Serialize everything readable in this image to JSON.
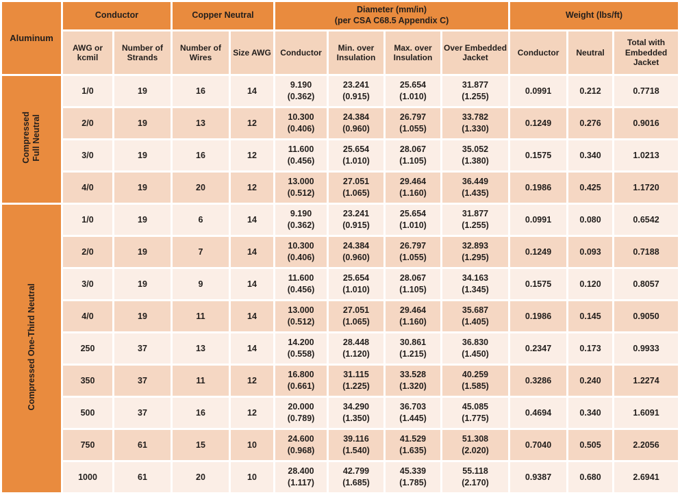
{
  "colors": {
    "accent": "#e98b3e",
    "row_light": "#fbeee6",
    "row_dark": "#f5d7c3",
    "subheader": "#f4d4bd",
    "text": "#221e1c",
    "background": "#ffffff"
  },
  "header": {
    "corner": "Aluminum",
    "groups": [
      {
        "label": "Conductor",
        "span": 2
      },
      {
        "label": "Copper Neutral",
        "span": 2
      },
      {
        "label": "Diameter (mm/in)",
        "label2": "(per CSA C68.5 Appendix C)",
        "span": 4
      },
      {
        "label": "Weight (lbs/ft)",
        "span": 3
      }
    ],
    "columns": [
      "AWG or kcmil",
      "Number of Strands",
      "Number of Wires",
      "Size AWG",
      "Conductor",
      "Min. over Insulation",
      "Max. over Insulation",
      "Over Embedded Jacket",
      "Conductor",
      "Neutral",
      "Total with Embedded Jacket"
    ]
  },
  "sections": [
    {
      "label": "Compressed Full Neutral",
      "label_lines": [
        "Compressed",
        "Full Neutral"
      ],
      "rows": [
        {
          "awg": "1/0",
          "strands": "19",
          "wires": "16",
          "size": "14",
          "dia_conductor": [
            "9.190",
            "(0.362)"
          ],
          "dia_min": [
            "23.241",
            "(0.915)"
          ],
          "dia_max": [
            "25.654",
            "(1.010)"
          ],
          "dia_jacket": [
            "31.877",
            "(1.255)"
          ],
          "wt_conductor": "0.0991",
          "wt_neutral": "0.212",
          "wt_total": "0.7718"
        },
        {
          "awg": "2/0",
          "strands": "19",
          "wires": "13",
          "size": "12",
          "dia_conductor": [
            "10.300",
            "(0.406)"
          ],
          "dia_min": [
            "24.384",
            "(0.960)"
          ],
          "dia_max": [
            "26.797",
            "(1.055)"
          ],
          "dia_jacket": [
            "33.782",
            "(1.330)"
          ],
          "wt_conductor": "0.1249",
          "wt_neutral": "0.276",
          "wt_total": "0.9016"
        },
        {
          "awg": "3/0",
          "strands": "19",
          "wires": "16",
          "size": "12",
          "dia_conductor": [
            "11.600",
            "(0.456)"
          ],
          "dia_min": [
            "25.654",
            "(1.010)"
          ],
          "dia_max": [
            "28.067",
            "(1.105)"
          ],
          "dia_jacket": [
            "35.052",
            "(1.380)"
          ],
          "wt_conductor": "0.1575",
          "wt_neutral": "0.340",
          "wt_total": "1.0213"
        },
        {
          "awg": "4/0",
          "strands": "19",
          "wires": "20",
          "size": "12",
          "dia_conductor": [
            "13.000",
            "(0.512)"
          ],
          "dia_min": [
            "27.051",
            "(1.065)"
          ],
          "dia_max": [
            "29.464",
            "(1.160)"
          ],
          "dia_jacket": [
            "36.449",
            "(1.435)"
          ],
          "wt_conductor": "0.1986",
          "wt_neutral": "0.425",
          "wt_total": "1.1720"
        }
      ]
    },
    {
      "label": "Compressed One-Third Neutral",
      "label_lines": [
        "Compressed One-Third Neutral"
      ],
      "rows": [
        {
          "awg": "1/0",
          "strands": "19",
          "wires": "6",
          "size": "14",
          "dia_conductor": [
            "9.190",
            "(0.362)"
          ],
          "dia_min": [
            "23.241",
            "(0.915)"
          ],
          "dia_max": [
            "25.654",
            "(1.010)"
          ],
          "dia_jacket": [
            "31.877",
            "(1.255)"
          ],
          "wt_conductor": "0.0991",
          "wt_neutral": "0.080",
          "wt_total": "0.6542"
        },
        {
          "awg": "2/0",
          "strands": "19",
          "wires": "7",
          "size": "14",
          "dia_conductor": [
            "10.300",
            "(0.406)"
          ],
          "dia_min": [
            "24.384",
            "(0.960)"
          ],
          "dia_max": [
            "26.797",
            "(1.055)"
          ],
          "dia_jacket": [
            "32.893",
            "(1.295)"
          ],
          "wt_conductor": "0.1249",
          "wt_neutral": "0.093",
          "wt_total": "0.7188"
        },
        {
          "awg": "3/0",
          "strands": "19",
          "wires": "9",
          "size": "14",
          "dia_conductor": [
            "11.600",
            "(0.456)"
          ],
          "dia_min": [
            "25.654",
            "(1.010)"
          ],
          "dia_max": [
            "28.067",
            "(1.105)"
          ],
          "dia_jacket": [
            "34.163",
            "(1.345)"
          ],
          "wt_conductor": "0.1575",
          "wt_neutral": "0.120",
          "wt_total": "0.8057"
        },
        {
          "awg": "4/0",
          "strands": "19",
          "wires": "11",
          "size": "14",
          "dia_conductor": [
            "13.000",
            "(0.512)"
          ],
          "dia_min": [
            "27.051",
            "(1.065)"
          ],
          "dia_max": [
            "29.464",
            "(1.160)"
          ],
          "dia_jacket": [
            "35.687",
            "(1.405)"
          ],
          "wt_conductor": "0.1986",
          "wt_neutral": "0.145",
          "wt_total": "0.9050"
        },
        {
          "awg": "250",
          "strands": "37",
          "wires": "13",
          "size": "14",
          "dia_conductor": [
            "14.200",
            "(0.558)"
          ],
          "dia_min": [
            "28.448",
            "(1.120)"
          ],
          "dia_max": [
            "30.861",
            "(1.215)"
          ],
          "dia_jacket": [
            "36.830",
            "(1.450)"
          ],
          "wt_conductor": "0.2347",
          "wt_neutral": "0.173",
          "wt_total": "0.9933"
        },
        {
          "awg": "350",
          "strands": "37",
          "wires": "11",
          "size": "12",
          "dia_conductor": [
            "16.800",
            "(0.661)"
          ],
          "dia_min": [
            "31.115",
            "(1.225)"
          ],
          "dia_max": [
            "33.528",
            "(1.320)"
          ],
          "dia_jacket": [
            "40.259",
            "(1.585)"
          ],
          "wt_conductor": "0.3286",
          "wt_neutral": "0.240",
          "wt_total": "1.2274"
        },
        {
          "awg": "500",
          "strands": "37",
          "wires": "16",
          "size": "12",
          "dia_conductor": [
            "20.000",
            "(0.789)"
          ],
          "dia_min": [
            "34.290",
            "(1.350)"
          ],
          "dia_max": [
            "36.703",
            "(1.445)"
          ],
          "dia_jacket": [
            "45.085",
            "(1.775)"
          ],
          "wt_conductor": "0.4694",
          "wt_neutral": "0.340",
          "wt_total": "1.6091"
        },
        {
          "awg": "750",
          "strands": "61",
          "wires": "15",
          "size": "10",
          "dia_conductor": [
            "24.600",
            "(0.968)"
          ],
          "dia_min": [
            "39.116",
            "(1.540)"
          ],
          "dia_max": [
            "41.529",
            "(1.635)"
          ],
          "dia_jacket": [
            "51.308",
            "(2.020)"
          ],
          "wt_conductor": "0.7040",
          "wt_neutral": "0.505",
          "wt_total": "2.2056"
        },
        {
          "awg": "1000",
          "strands": "61",
          "wires": "20",
          "size": "10",
          "dia_conductor": [
            "28.400",
            "(1.117)"
          ],
          "dia_min": [
            "42.799",
            "(1.685)"
          ],
          "dia_max": [
            "45.339",
            "(1.785)"
          ],
          "dia_jacket": [
            "55.118",
            "(2.170)"
          ],
          "wt_conductor": "0.9387",
          "wt_neutral": "0.680",
          "wt_total": "2.6941"
        }
      ]
    }
  ]
}
